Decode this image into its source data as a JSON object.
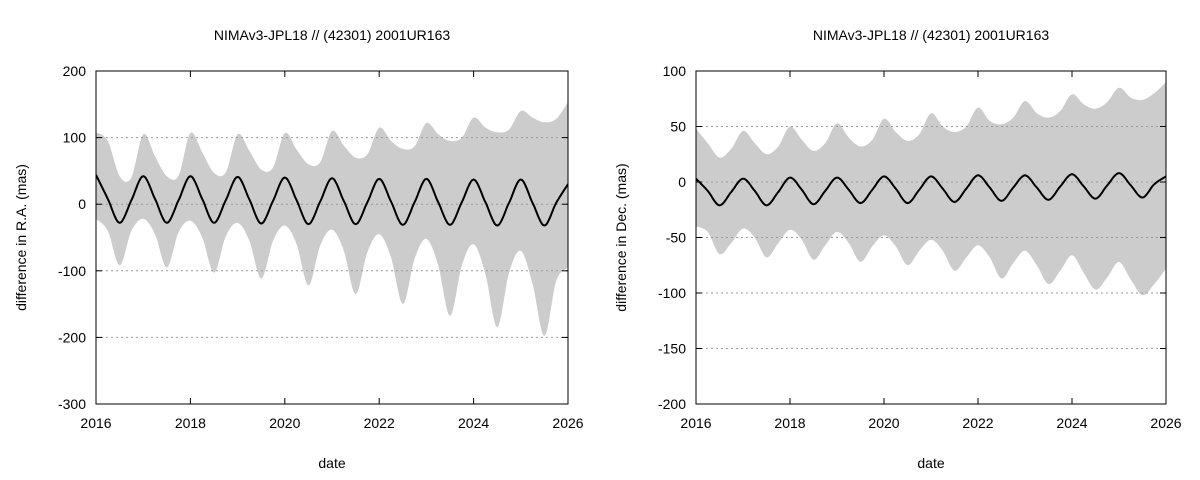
{
  "chart_data": [
    {
      "type": "area",
      "title": "NIMAv3-JPL18 // (42301) 2001UR163",
      "xlabel": "date",
      "ylabel": "difference in R.A. (mas)",
      "xlim": [
        2016,
        2026
      ],
      "ylim": [
        -300,
        200
      ],
      "xticks": [
        2016,
        2018,
        2020,
        2022,
        2024,
        2026
      ],
      "yticks": [
        -300,
        -200,
        -100,
        0,
        100,
        200
      ],
      "tick_labels_x": [
        "2016",
        "2018",
        "2020",
        "2022",
        "2024",
        "2026"
      ],
      "tick_labels_y": [
        "-300",
        "-200",
        "-100",
        "0",
        "100",
        "200"
      ],
      "grid": "horizontal dotted",
      "colors": {
        "band": "#cccccc",
        "line": "#000000"
      },
      "series": [
        {
          "role": "uncertainty band (upper)",
          "x": [
            2016.0,
            2016.25,
            2016.5,
            2016.75,
            2017.0,
            2017.25,
            2017.5,
            2017.75,
            2018.0,
            2018.25,
            2018.5,
            2018.75,
            2019.0,
            2019.25,
            2019.5,
            2019.75,
            2020.0,
            2020.25,
            2020.5,
            2020.75,
            2021.0,
            2021.25,
            2021.5,
            2021.75,
            2022.0,
            2022.25,
            2022.5,
            2022.75,
            2023.0,
            2023.25,
            2023.5,
            2023.75,
            2024.0,
            2024.25,
            2024.5,
            2024.75,
            2025.0,
            2025.25,
            2025.5,
            2025.75,
            2026.0
          ],
          "values": [
            108,
            95,
            42,
            40,
            105,
            72,
            42,
            43,
            107,
            78,
            47,
            48,
            105,
            80,
            52,
            55,
            107,
            82,
            60,
            63,
            110,
            88,
            70,
            75,
            115,
            95,
            83,
            87,
            122,
            105,
            95,
            100,
            130,
            115,
            108,
            112,
            140,
            130,
            123,
            128,
            153
          ]
        },
        {
          "role": "uncertainty band (lower)",
          "x": [
            2016.0,
            2016.25,
            2016.5,
            2016.75,
            2017.0,
            2017.25,
            2017.5,
            2017.75,
            2018.0,
            2018.25,
            2018.5,
            2018.75,
            2019.0,
            2019.25,
            2019.5,
            2019.75,
            2020.0,
            2020.25,
            2020.5,
            2020.75,
            2021.0,
            2021.25,
            2021.5,
            2021.75,
            2022.0,
            2022.25,
            2022.5,
            2022.75,
            2023.0,
            2023.25,
            2023.5,
            2023.75,
            2024.0,
            2024.25,
            2024.5,
            2024.75,
            2025.0,
            2025.25,
            2025.5,
            2025.75,
            2026.0
          ],
          "values": [
            -22,
            -40,
            -92,
            -40,
            -22,
            -45,
            -95,
            -42,
            -25,
            -50,
            -103,
            -48,
            -28,
            -55,
            -112,
            -55,
            -32,
            -60,
            -122,
            -62,
            -38,
            -70,
            -135,
            -72,
            -45,
            -80,
            -150,
            -82,
            -52,
            -92,
            -168,
            -92,
            -60,
            -105,
            -185,
            -103,
            -70,
            -120,
            -198,
            -115,
            -95
          ]
        },
        {
          "role": "mean difference",
          "x": [
            2016.0,
            2016.25,
            2016.5,
            2016.75,
            2017.0,
            2017.25,
            2017.5,
            2017.75,
            2018.0,
            2018.25,
            2018.5,
            2018.75,
            2019.0,
            2019.25,
            2019.5,
            2019.75,
            2020.0,
            2020.25,
            2020.5,
            2020.75,
            2021.0,
            2021.25,
            2021.5,
            2021.75,
            2022.0,
            2022.25,
            2022.5,
            2022.75,
            2023.0,
            2023.25,
            2023.5,
            2023.75,
            2024.0,
            2024.25,
            2024.5,
            2024.75,
            2025.0,
            2025.25,
            2025.5,
            2025.75,
            2026.0
          ],
          "values": [
            44,
            8,
            -28,
            6,
            42,
            8,
            -28,
            6,
            42,
            8,
            -28,
            6,
            41,
            7,
            -29,
            5,
            40,
            6,
            -30,
            4,
            39,
            5,
            -30,
            3,
            38,
            4,
            -31,
            3,
            38,
            3,
            -31,
            3,
            37,
            3,
            -32,
            2,
            37,
            2,
            -32,
            2,
            30
          ]
        }
      ]
    },
    {
      "type": "area",
      "title": "NIMAv3-JPL18 // (42301) 2001UR163",
      "xlabel": "date",
      "ylabel": "difference in Dec. (mas)",
      "xlim": [
        2016,
        2026
      ],
      "ylim": [
        -200,
        100
      ],
      "xticks": [
        2016,
        2018,
        2020,
        2022,
        2024,
        2026
      ],
      "yticks": [
        -200,
        -150,
        -100,
        -50,
        0,
        50,
        100
      ],
      "tick_labels_x": [
        "2016",
        "2018",
        "2020",
        "2022",
        "2024",
        "2026"
      ],
      "tick_labels_y": [
        "-200",
        "-150",
        "-100",
        "-50",
        "0",
        "50",
        "100"
      ],
      "grid": "horizontal dotted",
      "colors": {
        "band": "#cccccc",
        "line": "#000000"
      },
      "series": [
        {
          "role": "uncertainty band (upper)",
          "x": [
            2016.0,
            2016.25,
            2016.5,
            2016.75,
            2017.0,
            2017.25,
            2017.5,
            2017.75,
            2018.0,
            2018.25,
            2018.5,
            2018.75,
            2019.0,
            2019.25,
            2019.5,
            2019.75,
            2020.0,
            2020.25,
            2020.5,
            2020.75,
            2021.0,
            2021.25,
            2021.5,
            2021.75,
            2022.0,
            2022.25,
            2022.5,
            2022.75,
            2023.0,
            2023.25,
            2023.5,
            2023.75,
            2024.0,
            2024.25,
            2024.5,
            2024.75,
            2025.0,
            2025.25,
            2025.5,
            2025.75,
            2026.0
          ],
          "values": [
            48,
            35,
            22,
            30,
            46,
            35,
            25,
            32,
            50,
            38,
            28,
            35,
            53,
            40,
            32,
            38,
            57,
            45,
            37,
            43,
            62,
            50,
            45,
            50,
            67,
            55,
            52,
            58,
            73,
            62,
            58,
            64,
            79,
            70,
            66,
            72,
            85,
            76,
            74,
            80,
            90
          ]
        },
        {
          "role": "uncertainty band (lower)",
          "x": [
            2016.0,
            2016.25,
            2016.5,
            2016.75,
            2017.0,
            2017.25,
            2017.5,
            2017.75,
            2018.0,
            2018.25,
            2018.5,
            2018.75,
            2019.0,
            2019.25,
            2019.5,
            2019.75,
            2020.0,
            2020.25,
            2020.5,
            2020.75,
            2021.0,
            2021.25,
            2021.5,
            2021.75,
            2022.0,
            2022.25,
            2022.5,
            2022.75,
            2023.0,
            2023.25,
            2023.5,
            2023.75,
            2024.0,
            2024.25,
            2024.5,
            2024.75,
            2025.0,
            2025.25,
            2025.5,
            2025.75,
            2026.0
          ],
          "values": [
            -40,
            -45,
            -65,
            -55,
            -42,
            -50,
            -68,
            -55,
            -43,
            -52,
            -70,
            -57,
            -45,
            -55,
            -72,
            -58,
            -48,
            -58,
            -75,
            -62,
            -52,
            -62,
            -80,
            -68,
            -57,
            -68,
            -87,
            -73,
            -62,
            -75,
            -92,
            -80,
            -66,
            -82,
            -97,
            -86,
            -72,
            -88,
            -102,
            -92,
            -78
          ]
        },
        {
          "role": "mean difference",
          "x": [
            2016.0,
            2016.25,
            2016.5,
            2016.75,
            2017.0,
            2017.25,
            2017.5,
            2017.75,
            2018.0,
            2018.25,
            2018.5,
            2018.75,
            2019.0,
            2019.25,
            2019.5,
            2019.75,
            2020.0,
            2020.25,
            2020.5,
            2020.75,
            2021.0,
            2021.25,
            2021.5,
            2021.75,
            2022.0,
            2022.25,
            2022.5,
            2022.75,
            2023.0,
            2023.25,
            2023.5,
            2023.75,
            2024.0,
            2024.25,
            2024.5,
            2024.75,
            2025.0,
            2025.25,
            2025.5,
            2025.75,
            2026.0
          ],
          "values": [
            3,
            -8,
            -21,
            -9,
            3,
            -8,
            -21,
            -9,
            4,
            -7,
            -20,
            -8,
            4,
            -7,
            -19,
            -7,
            5,
            -6,
            -19,
            -7,
            5,
            -6,
            -18,
            -6,
            6,
            -5,
            -17,
            -5,
            6,
            -5,
            -16,
            -4,
            7,
            -4,
            -15,
            -3,
            8,
            -3,
            -14,
            -2,
            5
          ]
        }
      ]
    }
  ]
}
